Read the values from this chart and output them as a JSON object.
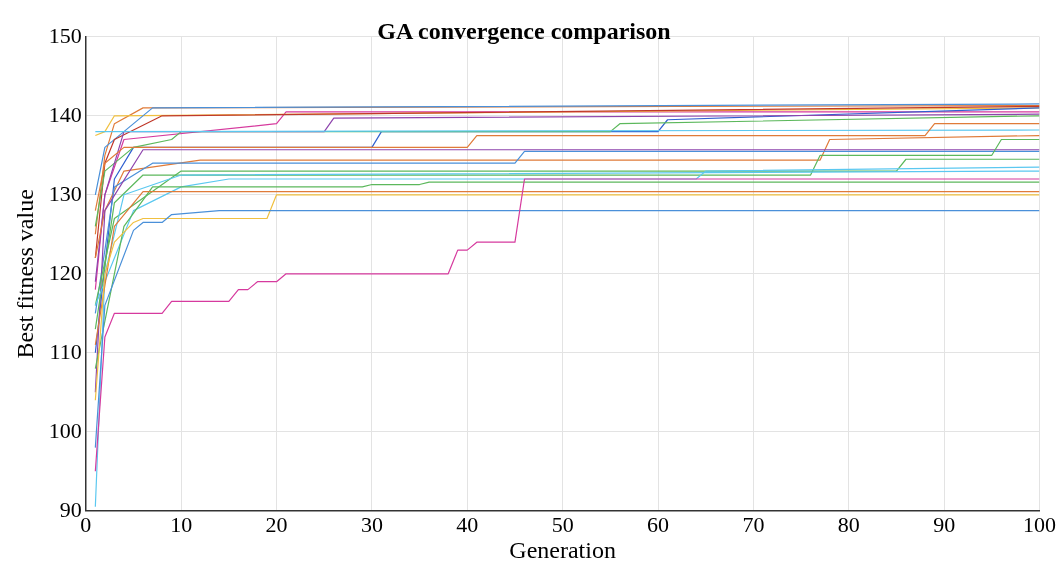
{
  "chart_data": {
    "type": "line",
    "title": "GA convergence comparison",
    "xlabel": "Generation",
    "ylabel": "Best fitness value",
    "xlim": [
      0,
      100
    ],
    "xticks": [
      0,
      10,
      20,
      30,
      40,
      50,
      60,
      70,
      80,
      90,
      100
    ],
    "ylim": [
      90,
      150
    ],
    "yticks": [
      90,
      100,
      110,
      120,
      130,
      140,
      150
    ],
    "grid": true,
    "legend": false,
    "marker": "none",
    "line_style": "solid",
    "series": [
      {
        "color": "#d63a9e",
        "x": [
          1,
          2,
          3,
          8,
          9,
          15,
          16,
          17,
          18,
          20,
          21,
          38,
          39,
          40,
          41,
          42,
          45,
          46,
          100
        ],
        "values": [
          95,
          112,
          115,
          115,
          116.5,
          116.5,
          118,
          118,
          119,
          119,
          120,
          120,
          123,
          123,
          124,
          124,
          124,
          132,
          132
        ]
      },
      {
        "color": "#4a90d9",
        "x": [
          1,
          2,
          5,
          6,
          8,
          9,
          14,
          100
        ],
        "values": [
          98,
          116,
          125.5,
          126.5,
          126.5,
          127.5,
          128,
          128
        ]
      },
      {
        "color": "#f0c040",
        "x": [
          1,
          2,
          3,
          5,
          6,
          19,
          20,
          100
        ],
        "values": [
          104,
          120,
          124,
          126.5,
          127,
          127,
          130,
          130
        ]
      },
      {
        "color": "#e07b39",
        "x": [
          1,
          3,
          6,
          100
        ],
        "values": [
          111,
          126,
          130.4,
          130.4
        ]
      },
      {
        "color": "#5bc8f0",
        "x": [
          1,
          2,
          4,
          10,
          100
        ],
        "values": [
          90.5,
          120,
          130,
          132.5,
          133
        ]
      },
      {
        "color": "#5cb85c",
        "x": [
          1,
          4,
          7,
          29,
          30,
          35,
          36,
          100
        ],
        "values": [
          108,
          126,
          131,
          131,
          131.3,
          131.3,
          131.6,
          131.6
        ]
      },
      {
        "color": "#5bc8f0",
        "x": [
          1,
          5,
          10,
          15,
          16,
          64,
          65,
          100
        ],
        "values": [
          116,
          128,
          131,
          132,
          132,
          132,
          133,
          133.5
        ]
      },
      {
        "color": "#5cb85c",
        "x": [
          1,
          3,
          6,
          76,
          77,
          95,
          96,
          100
        ],
        "values": [
          113,
          129,
          132.5,
          132.5,
          135,
          135,
          137,
          137
        ]
      },
      {
        "color": "#5cb85c",
        "x": [
          1,
          3,
          10,
          85,
          86,
          100
        ],
        "values": [
          116,
          127,
          133,
          133,
          134.5,
          134.5
        ]
      },
      {
        "color": "#8e44ad",
        "x": [
          1,
          2,
          6,
          100
        ],
        "values": [
          105,
          128,
          135.7,
          135.7
        ]
      },
      {
        "color": "#4a90d9",
        "x": [
          1,
          3,
          7,
          45,
          46,
          100
        ],
        "values": [
          115,
          131,
          134,
          134,
          135.5,
          135.5
        ]
      },
      {
        "color": "#e07b39",
        "x": [
          1,
          2,
          4,
          12,
          13,
          77,
          78,
          100
        ],
        "values": [
          122,
          128,
          133,
          134.4,
          134.4,
          134.4,
          137,
          137.5
        ]
      },
      {
        "color": "#e07b39",
        "x": [
          1,
          2,
          4,
          40,
          41,
          88,
          89,
          100
        ],
        "values": [
          128,
          134,
          136,
          136,
          137.5,
          137.5,
          139,
          139
        ]
      },
      {
        "color": "#5bc8f0",
        "x": [
          1,
          100
        ],
        "values": [
          138,
          138.2
        ]
      },
      {
        "color": "#8e44ad",
        "x": [
          1,
          2,
          4,
          25,
          26,
          100
        ],
        "values": [
          119,
          130,
          138,
          138,
          139.7,
          140.2
        ]
      },
      {
        "color": "#5cb85c",
        "x": [
          1,
          2,
          5,
          9,
          10,
          55,
          56,
          100
        ],
        "values": [
          126,
          133,
          136,
          137,
          138,
          138,
          139,
          140
        ]
      },
      {
        "color": "#3060d0",
        "x": [
          1,
          3,
          5,
          30,
          31,
          60,
          61,
          100
        ],
        "values": [
          110,
          132,
          136,
          136,
          138,
          138,
          139.5,
          141
        ]
      },
      {
        "color": "#c0392b",
        "x": [
          1,
          2,
          3,
          8,
          100
        ],
        "values": [
          122,
          134,
          137,
          140,
          141.2
        ]
      },
      {
        "color": "#4a90d9",
        "x": [
          1,
          2,
          7,
          100
        ],
        "values": [
          130,
          136,
          141,
          141.5
        ]
      },
      {
        "color": "#f0c040",
        "x": [
          1,
          2,
          3,
          100
        ],
        "values": [
          137.5,
          138,
          140,
          141
        ]
      },
      {
        "color": "#d63a9e",
        "x": [
          1,
          2,
          4,
          20,
          21,
          100
        ],
        "values": [
          118,
          130,
          137,
          139,
          140.5,
          140.5
        ]
      },
      {
        "color": "#e07b39",
        "x": [
          1,
          2,
          3,
          6,
          100
        ],
        "values": [
          125,
          135,
          139,
          141,
          141.3
        ]
      }
    ]
  }
}
